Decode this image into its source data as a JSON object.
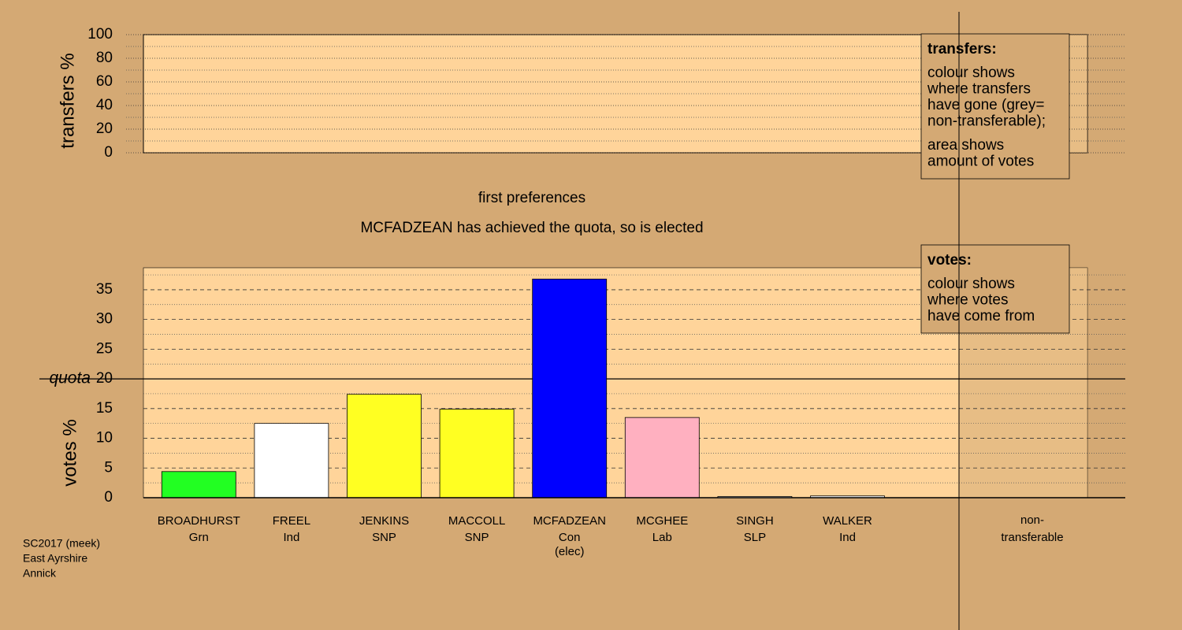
{
  "chart_data": [
    {
      "type": "panel",
      "ylabel": "transfers %",
      "ylim": [
        0,
        100
      ],
      "yticks": [
        0,
        20,
        40,
        60,
        80,
        100
      ],
      "minor_yticks": [
        10,
        30,
        50,
        70,
        90
      ],
      "grid": true,
      "legend": {
        "title": "transfers:",
        "paragraphs": [
          [
            "colour shows",
            "where transfers",
            "have gone (grey=",
            "non-transferable);"
          ],
          [
            "area shows",
            "amount of votes"
          ]
        ]
      }
    },
    {
      "type": "bar",
      "title": "first preferences",
      "subtitle": "MCFADZEAN has achieved the quota, so is elected",
      "ylabel": "votes %",
      "categories": [
        "BROADHURST",
        "FREEL",
        "JENKINS",
        "MACCOLL",
        "MCFADZEAN",
        "MCGHEE",
        "SINGH",
        "WALKER"
      ],
      "parties": [
        "Grn",
        "Ind",
        "SNP",
        "SNP",
        "Con",
        "Lab",
        "SLP",
        "Ind"
      ],
      "notes": [
        null,
        null,
        null,
        null,
        "(elec)",
        null,
        null,
        null
      ],
      "values": [
        4.4,
        12.5,
        17.4,
        14.9,
        36.8,
        13.5,
        0.2,
        0.3
      ],
      "colors": [
        "#22ff22",
        "#ffffff",
        "#ffff22",
        "#ffff22",
        "#0000ff",
        "#ffb0c0",
        "#ffffff",
        "#ffffff"
      ],
      "ylim": [
        0,
        38.7
      ],
      "yticks": [
        0,
        5,
        10,
        15,
        20,
        25,
        30,
        35
      ],
      "minor_yticks": [
        2.5,
        7.5,
        12.5,
        17.5,
        22.5,
        27.5,
        32.5,
        37.5
      ],
      "grid": true,
      "quota": {
        "label": "quota",
        "value": 20
      },
      "extra_column": [
        "non-",
        "transferable"
      ],
      "legend": {
        "title": "votes:",
        "paragraphs": [
          [
            "colour shows",
            "where votes",
            "have come from"
          ]
        ]
      }
    }
  ],
  "footer": [
    "SC2017 (meek)",
    "East Ayrshire",
    "Annick"
  ]
}
